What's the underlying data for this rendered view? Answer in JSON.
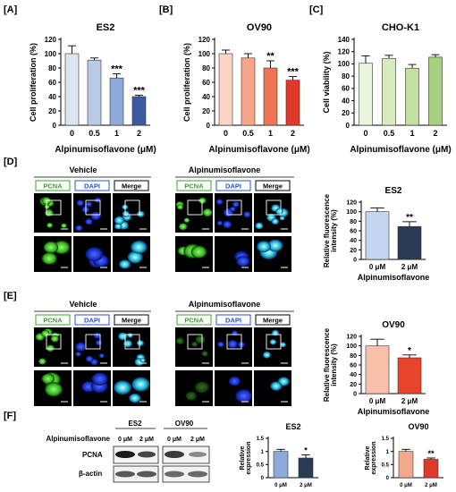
{
  "panel_labels": {
    "a": "[A]",
    "b": "[B]",
    "c": "[C]",
    "d": "[D]",
    "e": "[E]",
    "f": "[F]"
  },
  "chart_data": [
    {
      "id": "A",
      "type": "bar",
      "title": "ES2",
      "categories": [
        "0",
        "0.5",
        "1",
        "2"
      ],
      "values": [
        100,
        91,
        66,
        40
      ],
      "errors": [
        11,
        3,
        6,
        2
      ],
      "colors": [
        "#dce6f2",
        "#b8cbe6",
        "#8eaadb",
        "#3b5aa0"
      ],
      "sig": [
        "",
        "",
        "***",
        "***"
      ],
      "ylabel": "Cell proliferation (%)",
      "xlabel": "Alpinumisoflavone (μM)",
      "ylim": [
        0,
        120
      ],
      "yticks": [
        0,
        20,
        40,
        60,
        80,
        100,
        120
      ]
    },
    {
      "id": "B",
      "type": "bar",
      "title": "OV90",
      "categories": [
        "0",
        "0.5",
        "1",
        "2"
      ],
      "values": [
        100,
        94,
        80,
        63
      ],
      "errors": [
        5,
        6,
        10,
        5
      ],
      "colors": [
        "#fcd5c2",
        "#f6a78a",
        "#ee7455",
        "#e0382a"
      ],
      "sig": [
        "",
        "",
        "**",
        "***"
      ],
      "ylabel": "Cell proliferation (%)",
      "xlabel": "Alpinumisoflavone (μM)",
      "ylim": [
        0,
        120
      ],
      "yticks": [
        0,
        20,
        40,
        60,
        80,
        100,
        120
      ]
    },
    {
      "id": "C",
      "type": "bar",
      "title": "CHO-K1",
      "categories": [
        "0",
        "0.5",
        "1",
        "2"
      ],
      "values": [
        101,
        109,
        93,
        111
      ],
      "errors": [
        12,
        5,
        6,
        4
      ],
      "colors": [
        "#ebf4dc",
        "#d8ebbf",
        "#c2e0a0",
        "#a6d07d"
      ],
      "sig": [
        "",
        "",
        "",
        ""
      ],
      "ylabel": "Cell viability (%)",
      "xlabel": "Alpinumisoflavone (μM)",
      "ylim": [
        0,
        140
      ],
      "yticks": [
        0,
        20,
        40,
        60,
        80,
        100,
        120,
        140
      ]
    },
    {
      "id": "D-right",
      "type": "bar",
      "title": "ES2",
      "categories": [
        "0 μM",
        "2 μM"
      ],
      "values": [
        100,
        69
      ],
      "errors": [
        8,
        10
      ],
      "colors": [
        "#c5d5f0",
        "#2a3a55"
      ],
      "sig": [
        "",
        "**"
      ],
      "ylabel": "Relative fluorescence intensity (%)",
      "xlabel": "Alpinumisoflavone",
      "ylim": [
        0,
        120
      ],
      "yticks": [
        0,
        20,
        40,
        60,
        80,
        100,
        120
      ]
    },
    {
      "id": "E-right",
      "type": "bar",
      "title": "OV90",
      "categories": [
        "0 μM",
        "2 μM"
      ],
      "values": [
        100,
        75
      ],
      "errors": [
        14,
        6
      ],
      "colors": [
        "#f8c0aa",
        "#e8442c"
      ],
      "sig": [
        "",
        "*"
      ],
      "ylabel": "Relative fluorescence intensity (%)",
      "xlabel": "Alpinumisoflavone",
      "ylim": [
        0,
        120
      ],
      "yticks": [
        0,
        20,
        40,
        60,
        80,
        100,
        120
      ]
    },
    {
      "id": "F-ES2",
      "type": "bar",
      "title": "ES2",
      "categories": [
        "0 μM",
        "2 μM"
      ],
      "values": [
        1.0,
        0.75
      ],
      "errors": [
        0.08,
        0.12
      ],
      "colors": [
        "#8eaadb",
        "#2a3a55"
      ],
      "sig": [
        "",
        "*"
      ],
      "ylabel": "Relative expression",
      "xlabel": "",
      "ylim": [
        0,
        1.5
      ],
      "yticks": [
        0,
        0.5,
        1,
        1.5
      ],
      "yticklabels": [
        "0",
        "0.5",
        "1",
        "1.5"
      ]
    },
    {
      "id": "F-OV90",
      "type": "bar",
      "title": "OV90",
      "categories": [
        "0 μM",
        "2 μM"
      ],
      "values": [
        1.0,
        0.7
      ],
      "errors": [
        0.08,
        0.05
      ],
      "colors": [
        "#f4a98c",
        "#e0382a"
      ],
      "sig": [
        "",
        "**"
      ],
      "ylabel": "Relative expression",
      "xlabel": "",
      "ylim": [
        0,
        1.5
      ],
      "yticks": [
        0,
        0.5,
        1,
        1.5
      ],
      "yticklabels": [
        "0",
        "0.5",
        "1",
        "1.5"
      ]
    }
  ],
  "microscopy": {
    "d": {
      "vehicle_label": "Vehicle",
      "treated_label": "Alpinumisoflavone"
    },
    "e": {
      "vehicle_label": "Vehicle",
      "treated_label": "Alpinumisoflavone"
    },
    "channels": [
      "PCNA",
      "DAPI",
      "Merge"
    ],
    "channel_colors": [
      "#3aa02a",
      "#2a4fd0",
      "#000000"
    ]
  },
  "western": {
    "treatment_label": "Alpinumisoflavone",
    "cell_lines": [
      "ES2",
      "OV90"
    ],
    "lane_labels": [
      "0 μM",
      "2 μM",
      "0 μM",
      "2 μM"
    ],
    "proteins": [
      "PCNA",
      "β-actin"
    ]
  }
}
